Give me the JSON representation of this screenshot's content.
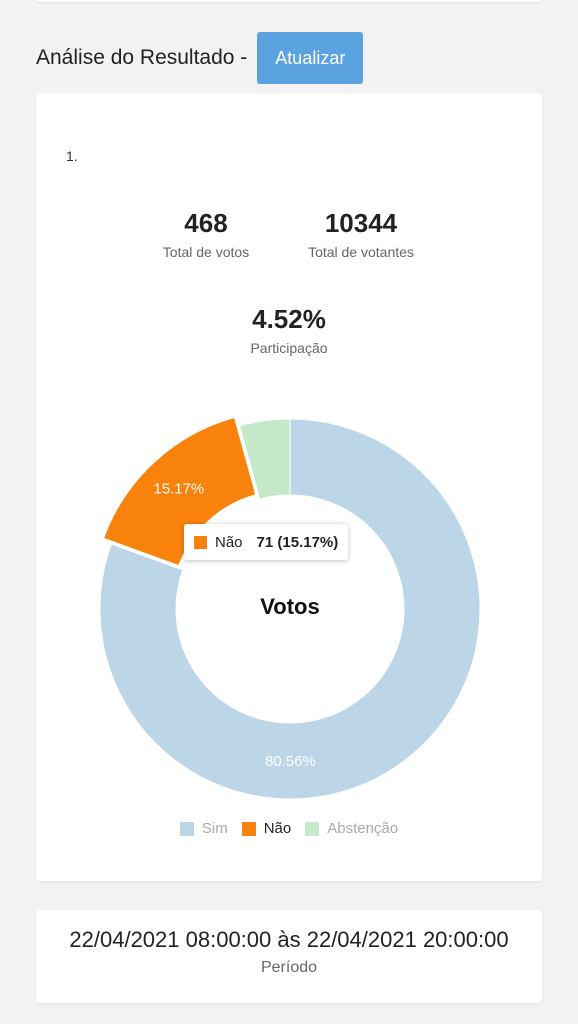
{
  "header": {
    "title": "Análise do Resultado -",
    "refresh_label": "Atualizar"
  },
  "result": {
    "item_number": "1.",
    "total_votes": {
      "value": "468",
      "label": "Total de votos"
    },
    "total_voters": {
      "value": "10344",
      "label": "Total de votantes"
    },
    "participation": {
      "value": "4.52%",
      "label": "Participação"
    }
  },
  "chart_data": {
    "type": "pie",
    "title": "Votos",
    "categories": [
      "Sim",
      "Não",
      "Abstenção"
    ],
    "values": [
      377,
      71,
      20
    ],
    "percent_labels": [
      "80.56%",
      "15.17%",
      ""
    ],
    "colors": [
      "#bcd6e8",
      "#f9820c",
      "#c4e8c8"
    ],
    "legend_position": "bottom",
    "tooltip": {
      "label": "Não",
      "value": "71 (15.17%)"
    }
  },
  "period": {
    "value": "22/04/2021 08:00:00 às 22/04/2021 20:00:00",
    "label": "Período"
  }
}
